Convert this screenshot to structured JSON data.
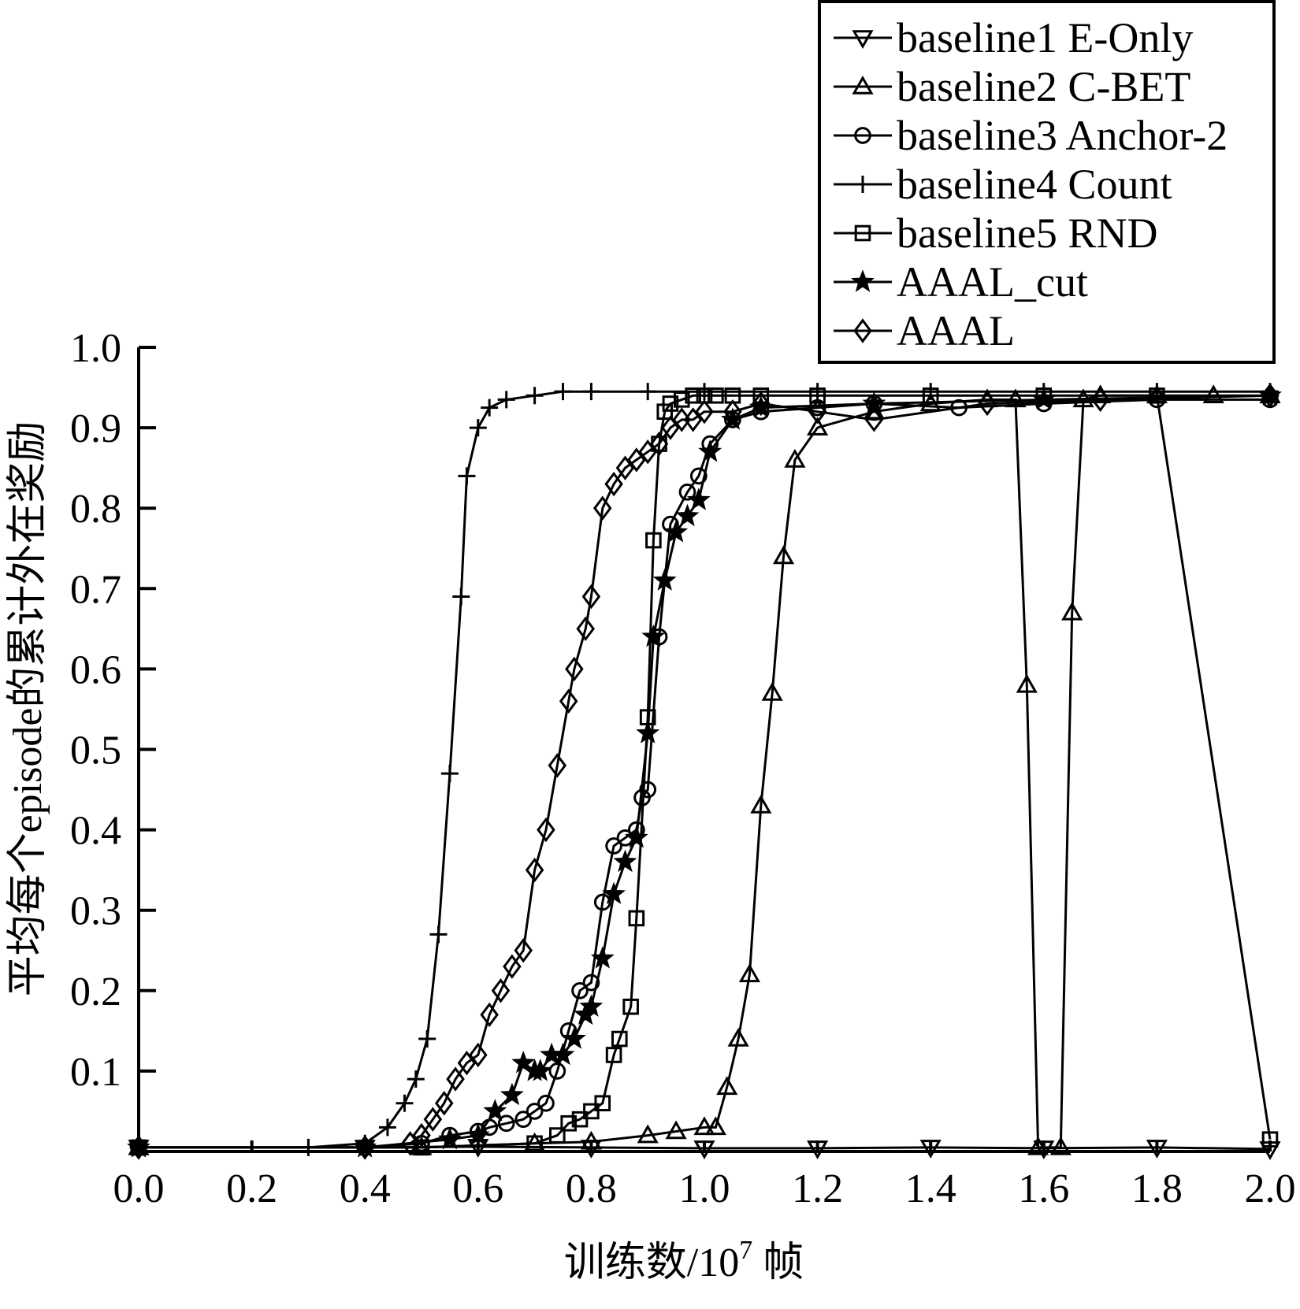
{
  "chart_data": {
    "type": "line",
    "title": "",
    "xlabel": "训练数/10",
    "xlabel_sup": "7",
    "xlabel_suffix": " 帧",
    "ylabel": "平均每个episode的累计外在奖励",
    "xlim": [
      0.0,
      2.0
    ],
    "ylim": [
      0.0,
      1.0
    ],
    "xticks": [
      "0.0",
      "0.2",
      "0.4",
      "0.6",
      "0.8",
      "1.0",
      "1.2",
      "1.4",
      "1.6",
      "1.8",
      "2.0"
    ],
    "yticks": [
      "0.1",
      "0.2",
      "0.3",
      "0.4",
      "0.5",
      "0.6",
      "0.7",
      "0.8",
      "0.9",
      "1.0"
    ],
    "grid": false,
    "legend_position": "top-right",
    "series": [
      {
        "name": "baseline1 E-Only",
        "marker": "triangle-down",
        "x": [
          0.0,
          0.4,
          0.6,
          0.8,
          1.0,
          1.2,
          1.4,
          1.6,
          1.8,
          2.0
        ],
        "y": [
          0.005,
          0.005,
          0.006,
          0.005,
          0.004,
          0.004,
          0.005,
          0.004,
          0.005,
          0.003
        ]
      },
      {
        "name": "baseline2 C-BET",
        "marker": "triangle-up",
        "x": [
          0.0,
          0.5,
          0.7,
          0.8,
          0.9,
          0.95,
          1.0,
          1.02,
          1.04,
          1.06,
          1.08,
          1.1,
          1.12,
          1.14,
          1.16,
          1.2,
          1.3,
          1.4,
          1.5,
          1.55,
          1.57,
          1.59,
          1.63,
          1.65,
          1.67,
          1.7,
          1.8,
          1.9,
          2.0
        ],
        "y": [
          0.005,
          0.005,
          0.01,
          0.012,
          0.02,
          0.025,
          0.03,
          0.03,
          0.08,
          0.14,
          0.22,
          0.43,
          0.57,
          0.74,
          0.86,
          0.9,
          0.92,
          0.93,
          0.935,
          0.935,
          0.58,
          0.005,
          0.005,
          0.67,
          0.935,
          0.94,
          0.94,
          0.94,
          0.94
        ]
      },
      {
        "name": "baseline3 Anchor-2",
        "marker": "circle",
        "x": [
          0.0,
          0.4,
          0.5,
          0.55,
          0.6,
          0.62,
          0.65,
          0.68,
          0.7,
          0.72,
          0.74,
          0.76,
          0.78,
          0.8,
          0.82,
          0.84,
          0.86,
          0.88,
          0.89,
          0.9,
          0.92,
          0.94,
          0.97,
          0.99,
          1.01,
          1.05,
          1.1,
          1.2,
          1.3,
          1.45,
          1.6,
          1.8,
          2.0
        ],
        "y": [
          0.005,
          0.005,
          0.01,
          0.02,
          0.025,
          0.03,
          0.035,
          0.04,
          0.05,
          0.06,
          0.1,
          0.15,
          0.2,
          0.21,
          0.31,
          0.38,
          0.39,
          0.4,
          0.44,
          0.45,
          0.64,
          0.78,
          0.82,
          0.84,
          0.88,
          0.91,
          0.92,
          0.925,
          0.93,
          0.925,
          0.93,
          0.935,
          0.935
        ]
      },
      {
        "name": "baseline4 Count",
        "marker": "plus",
        "x": [
          0.0,
          0.3,
          0.4,
          0.44,
          0.47,
          0.49,
          0.51,
          0.53,
          0.55,
          0.57,
          0.58,
          0.6,
          0.62,
          0.65,
          0.7,
          0.75,
          0.8,
          0.9,
          1.0,
          1.2,
          1.4,
          1.6,
          1.8,
          2.0
        ],
        "y": [
          0.005,
          0.005,
          0.01,
          0.03,
          0.06,
          0.09,
          0.14,
          0.27,
          0.47,
          0.69,
          0.84,
          0.9,
          0.925,
          0.935,
          0.94,
          0.945,
          0.945,
          0.945,
          0.945,
          0.945,
          0.945,
          0.945,
          0.945,
          0.945
        ]
      },
      {
        "name": "baseline5 RND",
        "marker": "square",
        "x": [
          0.0,
          0.5,
          0.7,
          0.74,
          0.76,
          0.78,
          0.8,
          0.82,
          0.84,
          0.85,
          0.87,
          0.88,
          0.9,
          0.91,
          0.92,
          0.93,
          0.94,
          0.96,
          0.98,
          1.0,
          1.02,
          1.05,
          1.1,
          1.2,
          1.4,
          1.6,
          1.8,
          2.0
        ],
        "y": [
          0.005,
          0.005,
          0.01,
          0.02,
          0.035,
          0.04,
          0.05,
          0.06,
          0.12,
          0.14,
          0.18,
          0.29,
          0.54,
          0.76,
          0.88,
          0.92,
          0.93,
          0.935,
          0.94,
          0.94,
          0.94,
          0.94,
          0.94,
          0.94,
          0.94,
          0.94,
          0.94,
          0.015
        ]
      },
      {
        "name": "AAAL_cut",
        "marker": "star",
        "x": [
          0.0,
          0.4,
          0.55,
          0.6,
          0.63,
          0.66,
          0.68,
          0.7,
          0.71,
          0.73,
          0.75,
          0.77,
          0.79,
          0.8,
          0.82,
          0.84,
          0.86,
          0.88,
          0.9,
          0.91,
          0.93,
          0.95,
          0.97,
          0.99,
          1.01,
          1.05,
          1.1,
          1.3,
          1.6,
          2.0
        ],
        "y": [
          0.005,
          0.005,
          0.015,
          0.02,
          0.05,
          0.07,
          0.11,
          0.1,
          0.1,
          0.12,
          0.12,
          0.14,
          0.17,
          0.18,
          0.24,
          0.32,
          0.36,
          0.39,
          0.52,
          0.64,
          0.71,
          0.77,
          0.79,
          0.81,
          0.87,
          0.91,
          0.925,
          0.93,
          0.935,
          0.94
        ]
      },
      {
        "name": "AAAL",
        "marker": "diamond",
        "x": [
          0.0,
          0.4,
          0.48,
          0.5,
          0.52,
          0.54,
          0.56,
          0.58,
          0.6,
          0.62,
          0.64,
          0.66,
          0.68,
          0.7,
          0.72,
          0.74,
          0.76,
          0.77,
          0.79,
          0.8,
          0.82,
          0.84,
          0.86,
          0.88,
          0.9,
          0.92,
          0.94,
          0.96,
          0.98,
          1.0,
          1.05,
          1.1,
          1.2,
          1.3,
          1.5,
          1.7,
          2.0
        ],
        "y": [
          0.005,
          0.005,
          0.01,
          0.02,
          0.04,
          0.06,
          0.09,
          0.11,
          0.12,
          0.17,
          0.2,
          0.23,
          0.25,
          0.35,
          0.4,
          0.48,
          0.56,
          0.6,
          0.65,
          0.69,
          0.8,
          0.83,
          0.85,
          0.86,
          0.87,
          0.88,
          0.9,
          0.91,
          0.91,
          0.92,
          0.92,
          0.93,
          0.92,
          0.91,
          0.93,
          0.935,
          0.94
        ]
      }
    ]
  }
}
